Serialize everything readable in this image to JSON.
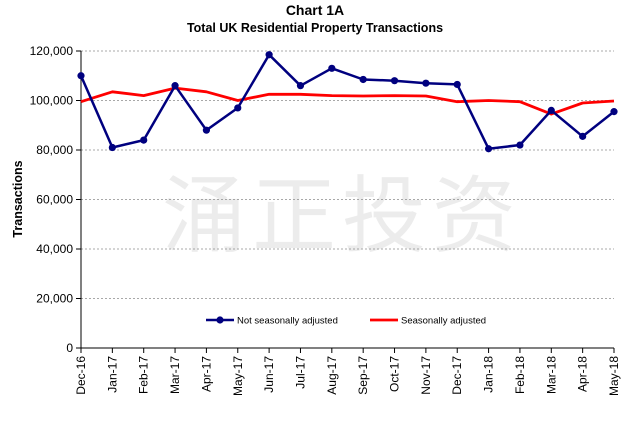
{
  "chart_data": {
    "type": "line",
    "title": "Chart 1A",
    "subtitle": "Total UK Residential Property Transactions",
    "ylabel": "Transactions",
    "xlabel": "",
    "ylim": [
      0,
      120000
    ],
    "yticks": [
      0,
      20000,
      40000,
      60000,
      80000,
      100000,
      120000
    ],
    "ytick_labels": [
      "0",
      "20,000",
      "40,000",
      "60,000",
      "80,000",
      "100,000",
      "120,000"
    ],
    "grid": true,
    "legend_position": "lower-center",
    "categories": [
      "Dec-16",
      "Jan-17",
      "Feb-17",
      "Mar-17",
      "Apr-17",
      "May-17",
      "Jun-17",
      "Jul-17",
      "Aug-17",
      "Sep-17",
      "Oct-17",
      "Nov-17",
      "Dec-17",
      "Jan-18",
      "Feb-18",
      "Mar-18",
      "Apr-18",
      "May-18"
    ],
    "series": [
      {
        "name": "Not seasonally adjusted",
        "color": "#00007f",
        "markers": true,
        "values": [
          110000,
          81000,
          84000,
          106000,
          88000,
          97000,
          118500,
          106000,
          113000,
          108500,
          108000,
          107000,
          106500,
          80500,
          82000,
          96000,
          85500,
          95500
        ]
      },
      {
        "name": "Seasonally adjusted",
        "color": "#ff0000",
        "markers": false,
        "values": [
          99500,
          103500,
          102000,
          105000,
          103500,
          100000,
          102500,
          102500,
          102000,
          101800,
          102000,
          101800,
          99500,
          100000,
          99500,
          94500,
          99000,
          99800
        ]
      }
    ]
  },
  "watermark": "涌正投资"
}
